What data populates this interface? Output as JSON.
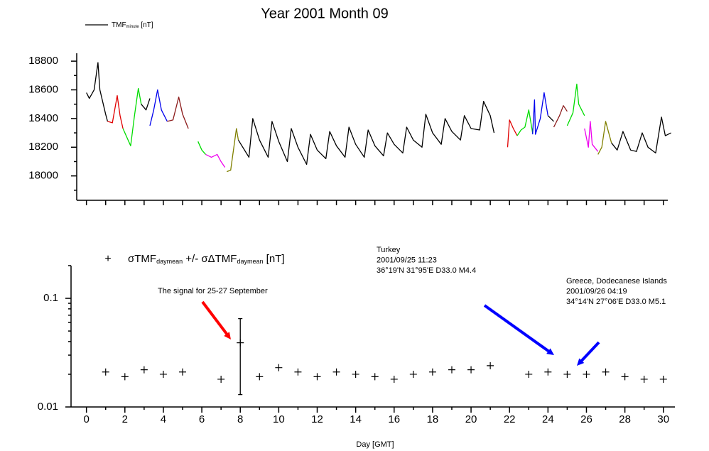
{
  "chart_data": [
    {
      "type": "line",
      "title": "Year 2001 Month 09",
      "legend_label": [
        {
          "text": "TMF"
        },
        {
          "text": "minute",
          "sub": true
        },
        {
          "text": " [nT]"
        }
      ],
      "legend_color": "#000000",
      "xlim": [
        -0.8,
        30.6
      ],
      "xticks": [
        0,
        1,
        2,
        3,
        4,
        5,
        6,
        7,
        8,
        9,
        10,
        11,
        12,
        13,
        14,
        15,
        16,
        17,
        18,
        19,
        20,
        21,
        22,
        23,
        24,
        25,
        26,
        27,
        28,
        29,
        30
      ],
      "ylim": [
        17830,
        18855
      ],
      "yticks": [
        18000,
        18200,
        18400,
        18600,
        18800
      ],
      "yminor_ticks": [
        17900,
        18100,
        18300,
        18500,
        18700
      ],
      "series": [
        {
          "color": "#000000",
          "x": [
            0,
            0.15,
            0.4,
            0.6,
            0.7,
            1.0,
            1.1
          ],
          "values": [
            18580,
            18540,
            18600,
            18790,
            18600,
            18430,
            18380
          ]
        },
        {
          "color": "#e00000",
          "x": [
            1.1,
            1.35,
            1.6,
            1.75,
            1.9
          ],
          "values": [
            18380,
            18370,
            18560,
            18420,
            18330
          ]
        },
        {
          "color": "#00dd00",
          "x": [
            1.9,
            2.3,
            2.5,
            2.7,
            2.85
          ],
          "values": [
            18330,
            18210,
            18420,
            18610,
            18500
          ]
        },
        {
          "color": "#000000",
          "x": [
            2.85,
            3.1,
            3.3
          ],
          "values": [
            18500,
            18460,
            18540
          ]
        },
        {
          "color": "#0000ee",
          "x": [
            3.3,
            3.5,
            3.7,
            3.9,
            4.2
          ],
          "values": [
            18350,
            18460,
            18600,
            18460,
            18380
          ]
        },
        {
          "color": "#8b1a1a",
          "x": [
            4.2,
            4.5,
            4.8,
            5.0,
            5.3
          ],
          "values": [
            18380,
            18390,
            18550,
            18430,
            18330
          ]
        },
        {
          "color": "#00dd00",
          "x": [
            5.8,
            6.0,
            6.2
          ],
          "values": [
            18240,
            18180,
            18150
          ]
        },
        {
          "color": "#ee00ee",
          "x": [
            6.2,
            6.5,
            6.8,
            7.0,
            7.2
          ],
          "values": [
            18150,
            18130,
            18150,
            18100,
            18060
          ]
        },
        {
          "color": "#808000",
          "x": [
            7.3,
            7.5,
            7.8,
            7.9
          ],
          "values": [
            18030,
            18040,
            18330,
            18250
          ]
        },
        {
          "color": "#000000",
          "x": [
            7.9,
            8.45,
            8.65,
            9.0,
            9.45,
            9.65,
            10.0,
            10.45,
            10.65,
            11.0,
            11.45,
            11.65,
            12.0,
            12.45,
            12.65,
            13.0,
            13.45,
            13.65,
            14.0,
            14.45,
            14.65,
            15.0,
            15.45,
            15.65,
            16.0,
            16.45,
            16.65,
            17.0,
            17.45,
            17.65,
            18.0,
            18.45,
            18.65,
            19.0,
            19.45,
            19.65,
            20.0,
            20.45,
            20.65,
            21.0,
            21.2
          ],
          "values": [
            18250,
            18130,
            18400,
            18250,
            18130,
            18380,
            18240,
            18100,
            18330,
            18200,
            18080,
            18290,
            18180,
            18120,
            18310,
            18210,
            18130,
            18340,
            18220,
            18130,
            18320,
            18210,
            18140,
            18300,
            18220,
            18160,
            18340,
            18250,
            18200,
            18430,
            18300,
            18220,
            18400,
            18310,
            18250,
            18420,
            18330,
            18320,
            18520,
            18420,
            18300
          ]
        },
        {
          "color": "#e00000",
          "x": [
            21.9,
            22.0,
            22.2,
            22.4
          ],
          "values": [
            18200,
            18390,
            18330,
            18280
          ]
        },
        {
          "color": "#00dd00",
          "x": [
            22.4,
            22.6,
            22.8,
            23.0,
            23.2
          ],
          "values": [
            18280,
            18320,
            18340,
            18460,
            18300
          ]
        },
        {
          "color": "#0000ee",
          "x": [
            23.2,
            23.3,
            23.35,
            23.6,
            23.8,
            24.0
          ],
          "values": [
            18290,
            18530,
            18290,
            18400,
            18580,
            18420
          ]
        },
        {
          "color": "#000000",
          "x": [
            24.0,
            24.3
          ],
          "values": [
            18420,
            18380
          ]
        },
        {
          "color": "#8b1a1a",
          "x": [
            24.3,
            24.6,
            24.8,
            25.0
          ],
          "values": [
            18340,
            18420,
            18490,
            18450
          ]
        },
        {
          "color": "#00dd00",
          "x": [
            25.0,
            25.3,
            25.5,
            25.6,
            25.9
          ],
          "values": [
            18350,
            18440,
            18640,
            18500,
            18420
          ]
        },
        {
          "color": "#ee00ee",
          "x": [
            25.9,
            26.1,
            26.2,
            26.3,
            26.6
          ],
          "values": [
            18330,
            18200,
            18380,
            18220,
            18170
          ]
        },
        {
          "color": "#808000",
          "x": [
            26.6,
            26.8,
            27.0,
            27.3
          ],
          "values": [
            18150,
            18200,
            18380,
            18230
          ]
        },
        {
          "color": "#000000",
          "x": [
            27.3,
            27.6,
            27.9,
            28.3,
            28.6,
            28.9,
            29.2,
            29.6,
            29.9,
            30.1,
            30.4
          ],
          "values": [
            18230,
            18180,
            18310,
            18180,
            18170,
            18300,
            18200,
            18160,
            18410,
            18280,
            18300
          ]
        }
      ]
    },
    {
      "type": "scatter",
      "legend_label": [
        {
          "text": "σTMF"
        },
        {
          "text": "daymean",
          "sub": true
        },
        {
          "text": " +/- σΔTMF"
        },
        {
          "text": "daymean",
          "sub": true
        },
        {
          "text": " [nT]"
        }
      ],
      "legend_marker": "+",
      "xlabel": "Day [GMT]",
      "xlim": [
        -0.8,
        30.6
      ],
      "xticks": [
        0,
        2,
        4,
        6,
        8,
        10,
        12,
        14,
        16,
        18,
        20,
        22,
        24,
        26,
        28,
        30
      ],
      "xminor_ticks": [
        1,
        3,
        5,
        7,
        9,
        11,
        13,
        15,
        17,
        19,
        21,
        23,
        25,
        27,
        29
      ],
      "log_y": true,
      "ylim": [
        0.01,
        0.2
      ],
      "yticks": [
        0.01,
        0.1
      ],
      "yminor_ticks": [
        0.02,
        0.03,
        0.04,
        0.05,
        0.06,
        0.07,
        0.08,
        0.09,
        0.2
      ],
      "color": "#000000",
      "x": [
        1,
        2,
        3,
        4,
        5,
        7,
        8,
        9,
        10,
        11,
        12,
        13,
        14,
        15,
        16,
        17,
        18,
        19,
        20,
        21,
        23,
        24,
        25,
        26,
        27,
        28,
        29,
        30
      ],
      "values": [
        0.021,
        0.019,
        0.022,
        0.02,
        0.021,
        0.018,
        0.039,
        0.019,
        0.023,
        0.021,
        0.019,
        0.021,
        0.02,
        0.019,
        0.018,
        0.02,
        0.021,
        0.022,
        0.022,
        0.024,
        0.02,
        0.021,
        0.02,
        0.02,
        0.021,
        0.019,
        0.018,
        0.018
      ],
      "errors": [
        null,
        null,
        null,
        null,
        null,
        null,
        0.026,
        null,
        null,
        null,
        null,
        null,
        null,
        null,
        null,
        null,
        null,
        null,
        null,
        null,
        null,
        null,
        null,
        null,
        null,
        null,
        null,
        null
      ],
      "annotations": [
        {
          "color": "#ff0000",
          "lines": [
            "The signal for 25-27 September"
          ]
        },
        {
          "color": "#0000ff",
          "lines": [
            "Turkey",
            "2001/09/25 11:23",
            "36°19'N 31°95'E D33.0 M4.4"
          ]
        },
        {
          "color": "#0000ff",
          "lines": [
            "Greece, Dodecanese Islands",
            "2001/09/26 04:19",
            "34°14'N 27°06'E D33.0 M5.1"
          ]
        }
      ]
    }
  ]
}
